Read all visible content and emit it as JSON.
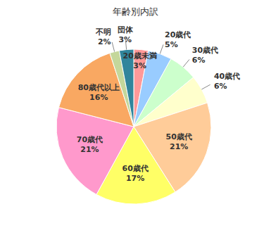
{
  "chart_data": {
    "type": "pie",
    "title": "年齢別内訳",
    "categories": [
      "20歳未満",
      "20歳代",
      "30歳代",
      "40歳代",
      "50歳代",
      "60歳代",
      "70歳代",
      "80歳代以上",
      "不明",
      "団体"
    ],
    "values": [
      3,
      5,
      6,
      6,
      21,
      17,
      21,
      16,
      2,
      3
    ],
    "value_labels": [
      "3%",
      "5%",
      "6%",
      "6%",
      "21%",
      "17%",
      "21%",
      "16%",
      "2%",
      "3%"
    ],
    "colors": [
      "#ff9999",
      "#99ccff",
      "#ccffcc",
      "#ffffcc",
      "#ffcc99",
      "#ffff66",
      "#ff99cc",
      "#f9a862",
      "#c4d79b",
      "#31859c"
    ],
    "data_labels": true
  }
}
